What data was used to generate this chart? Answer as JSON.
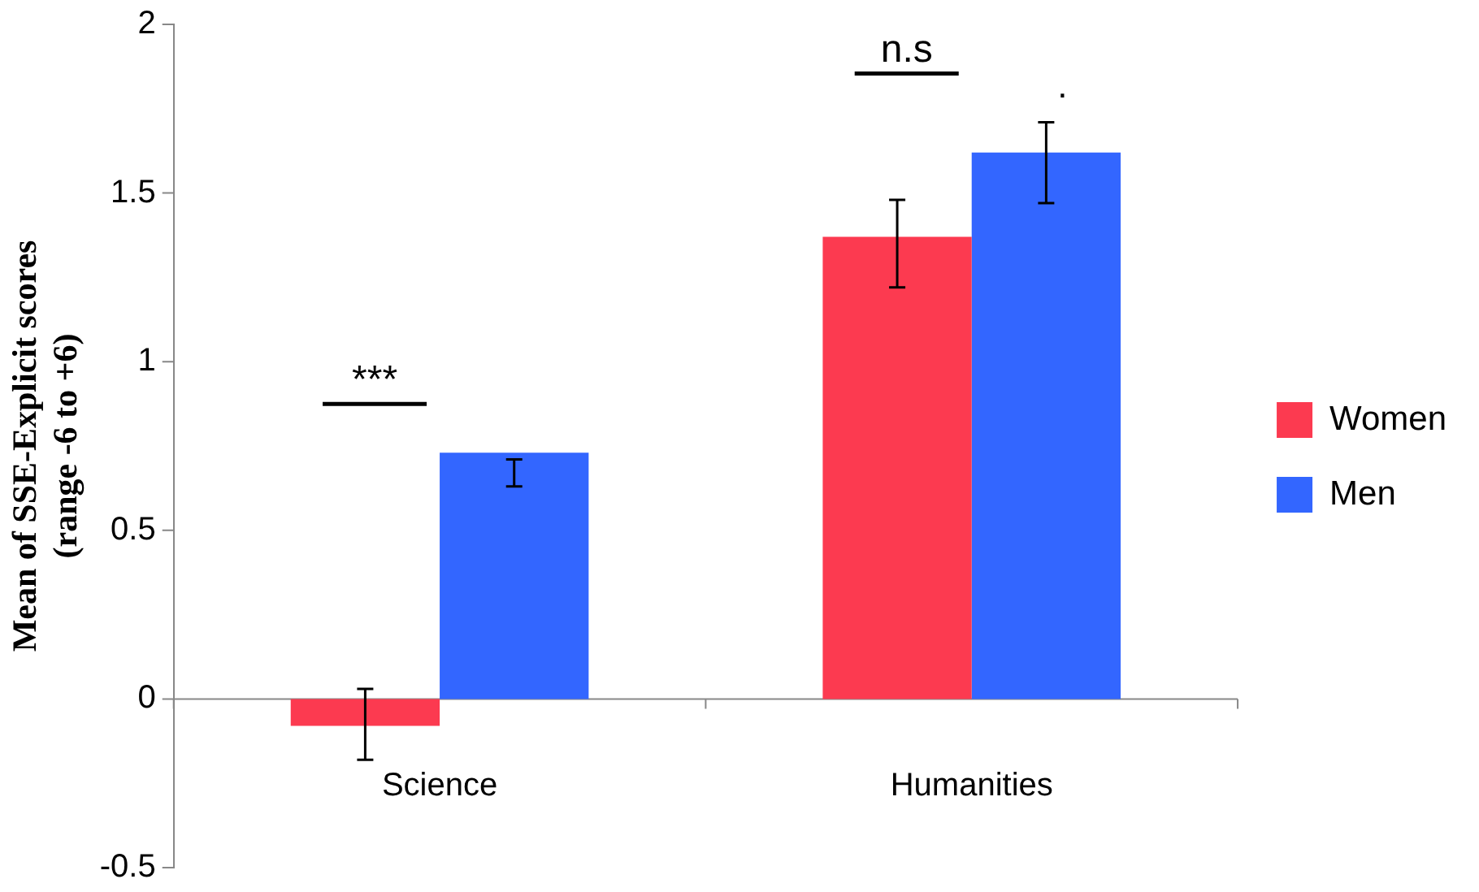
{
  "chart_data": {
    "type": "bar",
    "ylabel": "Mean of SSE-Explicit scores\n(range -6 to +6)",
    "categories": [
      "Science",
      "Humanities"
    ],
    "series": [
      {
        "name": "Women",
        "color": "#fc3a50",
        "values": [
          -0.08,
          1.37
        ],
        "errors": [
          [
            -0.18,
            0.03
          ],
          [
            1.22,
            1.48
          ]
        ]
      },
      {
        "name": "Men",
        "color": "#3366ff",
        "values": [
          0.73,
          1.62
        ],
        "errors": [
          [
            0.63,
            0.71
          ],
          [
            1.47,
            1.71
          ]
        ]
      }
    ],
    "ylim": [
      -0.5,
      2
    ],
    "yticks": [
      -0.5,
      0,
      0.5,
      1,
      1.5,
      2
    ],
    "grid": false,
    "legend": "right",
    "annotations": [
      "***",
      "n.s",
      "."
    ]
  }
}
